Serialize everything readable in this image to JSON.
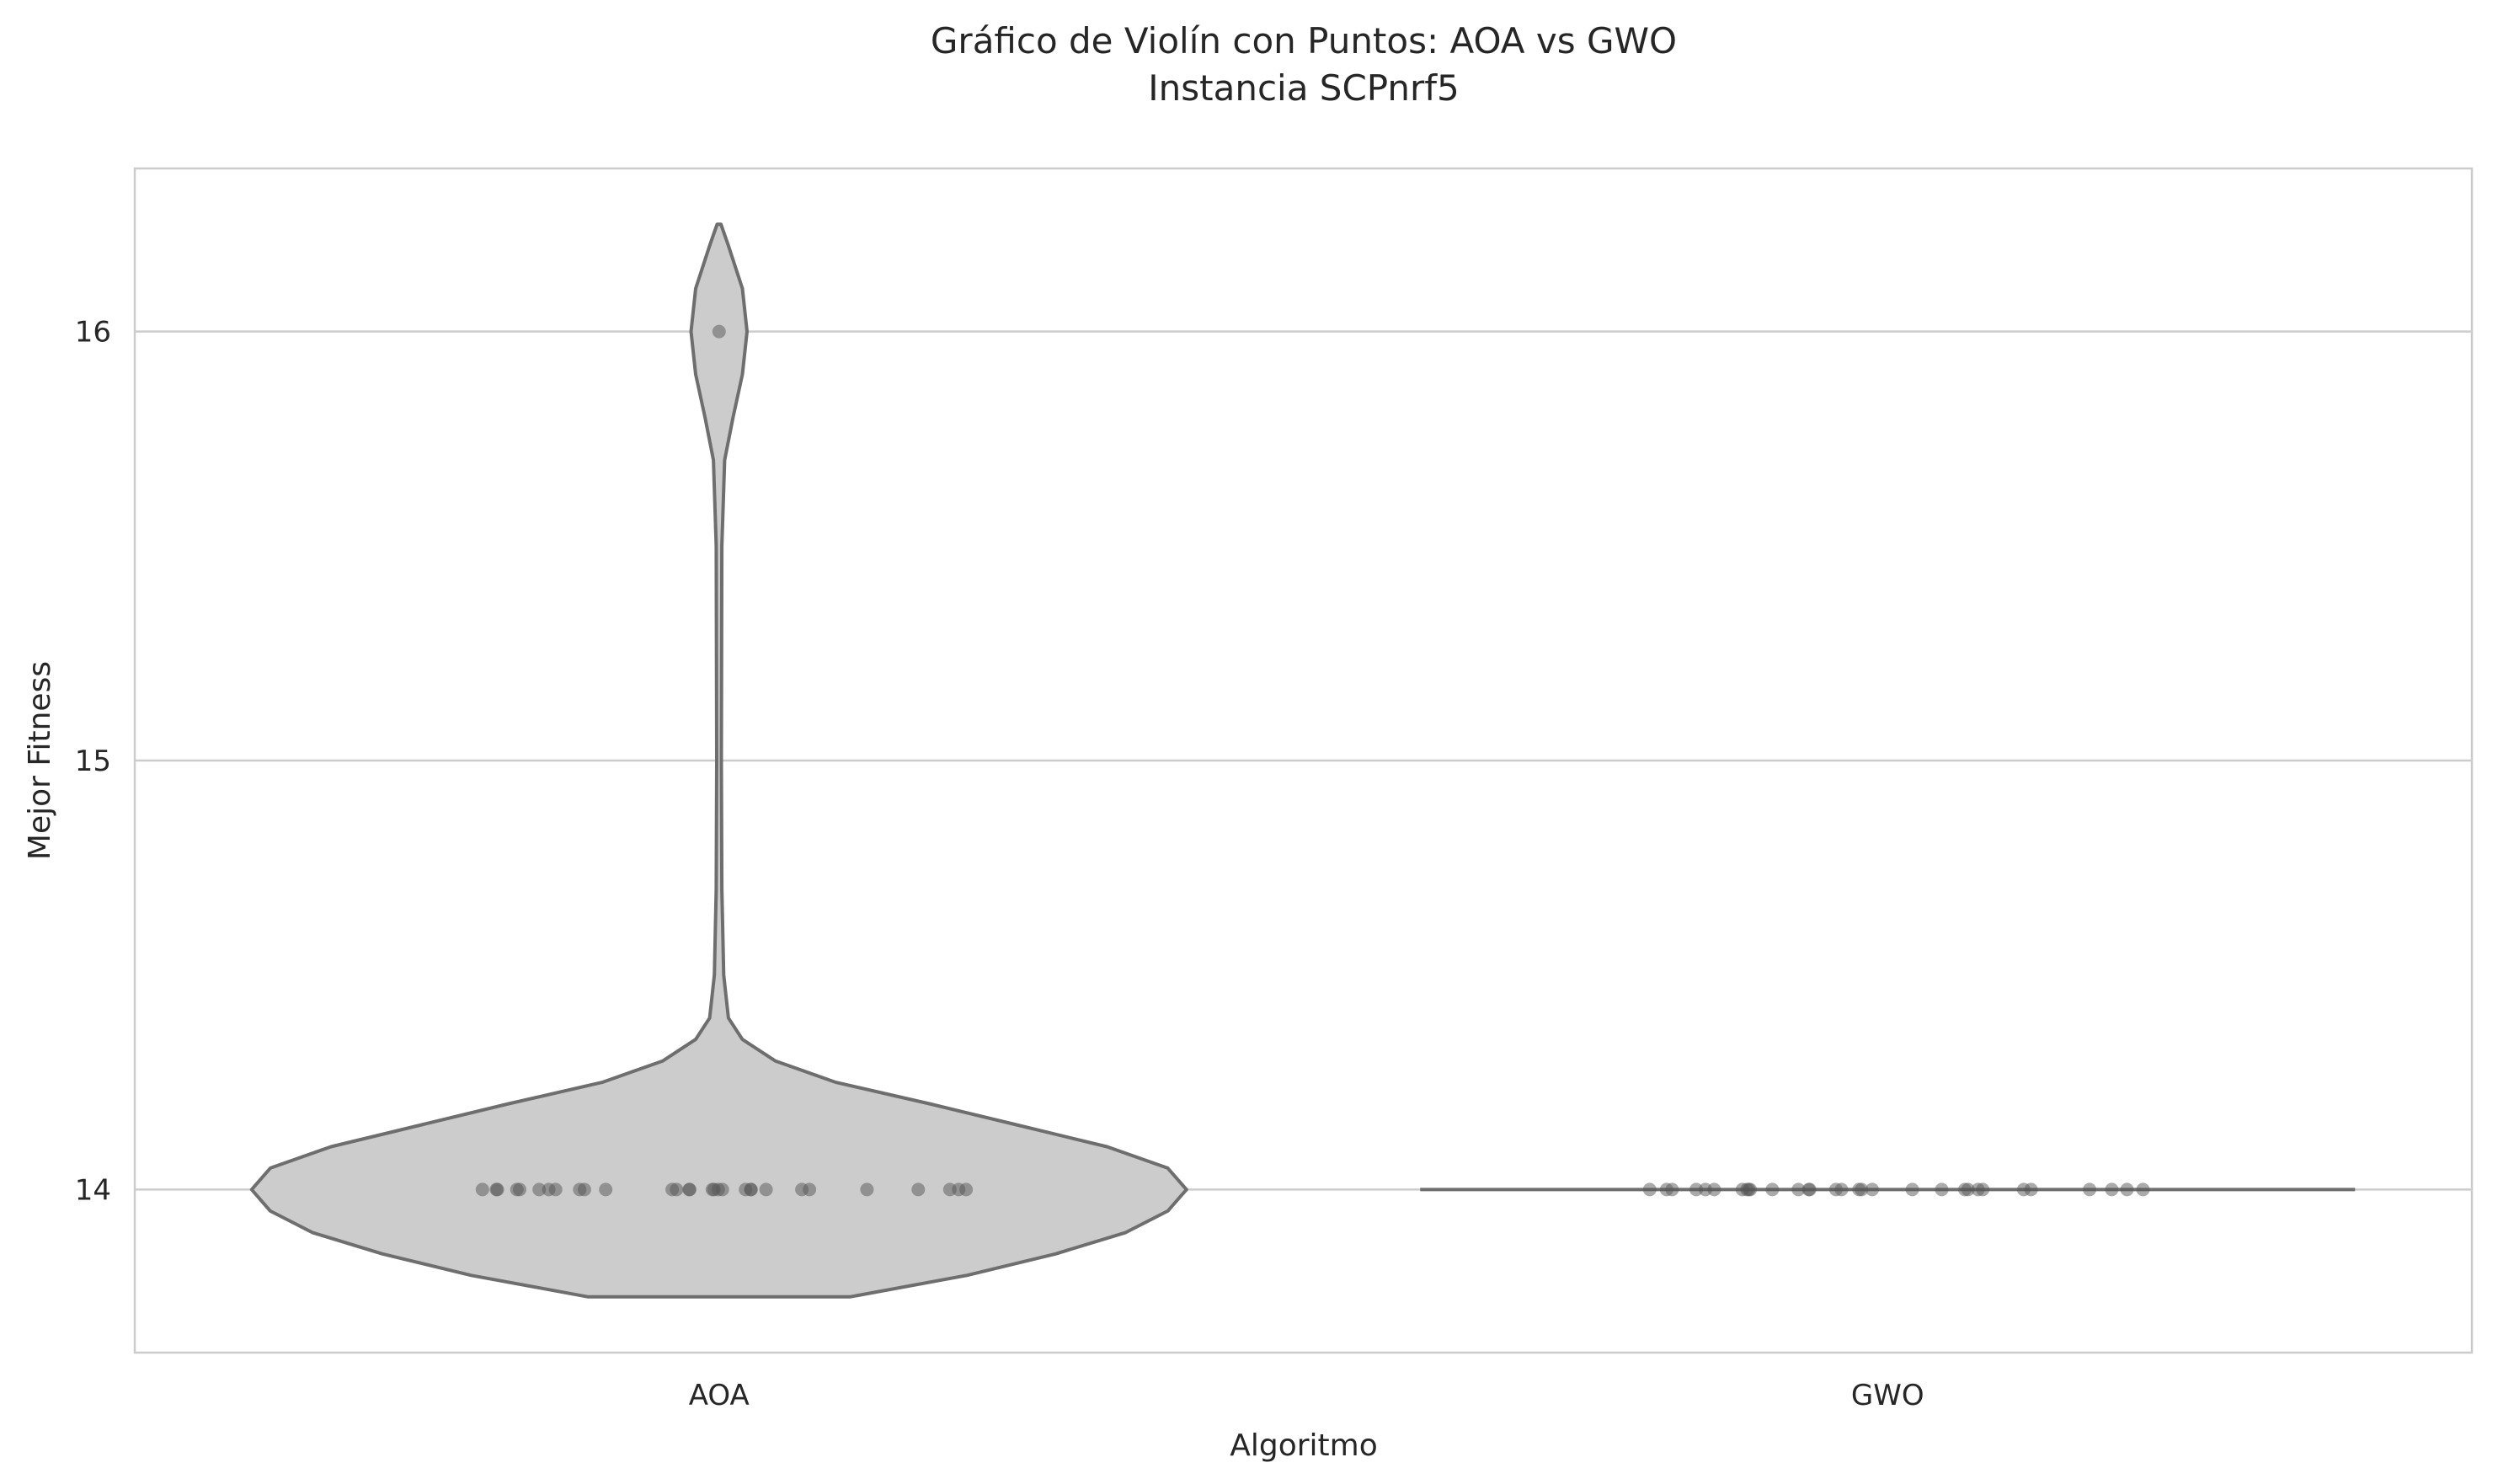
{
  "chart_data": {
    "type": "violin",
    "title": "Gráfico de Violín con Puntos: AOA vs GWO",
    "subtitle": "Instancia SCPnrf5",
    "xlabel": "Algoritmo",
    "ylabel": "Mejor Fitness",
    "categories": [
      "AOA",
      "GWO"
    ],
    "ylim": [
      13.62,
      16.38
    ],
    "yticks": [
      14,
      15,
      16
    ],
    "grid": "horizontal",
    "colors": {
      "violin_fill": "#cccccc",
      "violin_edge": "#6e6e6e",
      "points": "#555555",
      "grid": "#cccccc",
      "frame": "#cccccc"
    },
    "series": [
      {
        "values": [
          14,
          14,
          14,
          14,
          14,
          14,
          14,
          14,
          14,
          14,
          14,
          14,
          14,
          14,
          14,
          14,
          14,
          14,
          14,
          14,
          14,
          14,
          14,
          14,
          14,
          14,
          14,
          14,
          14,
          14,
          16
        ],
        "density": {
          "y": [
            13.75,
            13.8,
            13.85,
            13.9,
            13.95,
            14.0,
            14.05,
            14.1,
            14.15,
            14.2,
            14.25,
            14.3,
            14.35,
            14.4,
            14.5,
            14.7,
            15.0,
            15.5,
            15.7,
            15.8,
            15.9,
            16.0,
            16.1,
            16.2,
            16.25
          ],
          "width": [
            0.28,
            0.53,
            0.72,
            0.87,
            0.96,
            1.0,
            0.96,
            0.83,
            0.64,
            0.45,
            0.25,
            0.12,
            0.05,
            0.02,
            0.01,
            0.006,
            0.005,
            0.006,
            0.012,
            0.03,
            0.05,
            0.06,
            0.05,
            0.02,
            0.004
          ]
        }
      },
      {
        "values": [
          14,
          14,
          14,
          14,
          14,
          14,
          14,
          14,
          14,
          14,
          14,
          14,
          14,
          14,
          14,
          14,
          14,
          14,
          14,
          14,
          14,
          14,
          14,
          14,
          14,
          14,
          14,
          14,
          14,
          14,
          14
        ],
        "density": {
          "y": [
            14
          ],
          "width": [
            1.0
          ]
        }
      }
    ]
  }
}
